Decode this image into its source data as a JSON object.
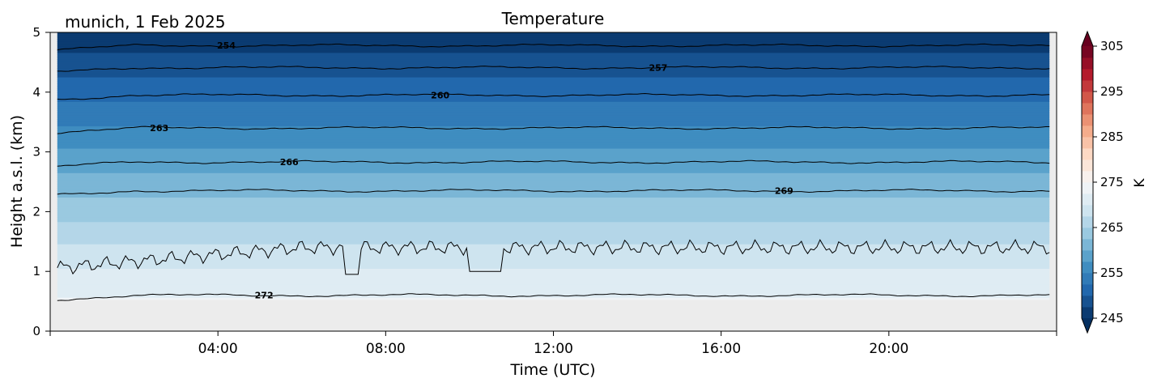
{
  "chart_data": {
    "type": "heatmap",
    "title": "Temperature",
    "subtitle": "munich, 1 Feb 2025",
    "xlabel": "Time (UTC)",
    "ylabel": "Height a.s.l. (km)",
    "xlim": [
      0,
      24
    ],
    "ylim": [
      0,
      5
    ],
    "x_ticks": [
      4,
      8,
      12,
      16,
      20
    ],
    "x_tick_labels": [
      "04:00",
      "08:00",
      "12:00",
      "16:00",
      "20:00"
    ],
    "y_ticks": [
      0,
      1,
      2,
      3,
      4,
      5
    ],
    "y_tick_labels": [
      "0",
      "1",
      "2",
      "3",
      "4",
      "5"
    ],
    "data_bottom_km": 0.53,
    "data_start_h": 0.17,
    "data_end_h": 23.83,
    "contours": [
      {
        "level": "254",
        "height_km": 4.78,
        "label_x_h": 4.2
      },
      {
        "level": "257",
        "height_km": 4.41,
        "label_x_h": 14.5
      },
      {
        "level": "260",
        "height_km": 3.95,
        "label_x_h": 9.3
      },
      {
        "level": "263",
        "height_km": 3.4,
        "label_x_h": 2.6
      },
      {
        "level": "266",
        "height_km": 2.83,
        "label_x_h": 5.7
      },
      {
        "level": "269",
        "height_km": 2.35,
        "label_x_h": 17.5
      },
      {
        "level": "272",
        "height_km": 0.6,
        "label_x_h": 5.1
      }
    ],
    "colorbar": {
      "label": "K",
      "min": 245,
      "max": 305,
      "step": 2.5,
      "ticks": [
        "245",
        "255",
        "265",
        "275",
        "285",
        "295",
        "305"
      ],
      "colormap": "RdBu_r",
      "extend": "both"
    }
  }
}
